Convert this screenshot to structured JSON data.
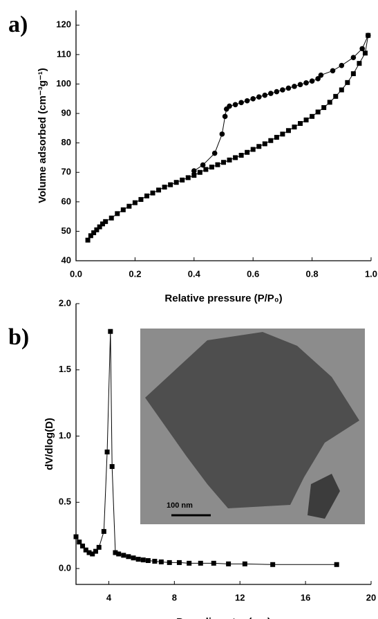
{
  "chart_data": [
    {
      "type": "line",
      "panel_label": "a)",
      "x_label": "Relative pressure (P/P₀)",
      "y_label": "Volume adsorbed (cm⁻³g⁻¹)",
      "xlim": [
        0,
        1
      ],
      "ylim": [
        40,
        125
      ],
      "xticks": [
        {
          "value": 0,
          "label": "0.0"
        },
        0.2,
        0.4,
        0.6,
        0.8,
        {
          "value": 1,
          "label": "1.0"
        }
      ],
      "yticks": [
        40,
        50,
        60,
        70,
        80,
        90,
        100,
        110,
        120
      ],
      "series": [
        {
          "marker": "square",
          "color": "#000000",
          "x": [
            0.04,
            0.05,
            0.06,
            0.07,
            0.08,
            0.09,
            0.1,
            0.12,
            0.14,
            0.16,
            0.18,
            0.2,
            0.22,
            0.24,
            0.26,
            0.28,
            0.3,
            0.32,
            0.34,
            0.36,
            0.38,
            0.4,
            0.42,
            0.44,
            0.46,
            0.48,
            0.5,
            0.52,
            0.54,
            0.56,
            0.58,
            0.6,
            0.62,
            0.64,
            0.66,
            0.68,
            0.7,
            0.72,
            0.74,
            0.76,
            0.78,
            0.8,
            0.82,
            0.84,
            0.86,
            0.88,
            0.9,
            0.92,
            0.94,
            0.96,
            0.98,
            0.99
          ],
          "values": [
            47,
            48.5,
            49.5,
            50.5,
            51.5,
            52.5,
            53.3,
            54.5,
            56,
            57.3,
            58.5,
            59.7,
            60.8,
            62,
            63,
            64,
            65,
            65.8,
            66.6,
            67.4,
            68.2,
            69,
            70,
            71,
            71.8,
            72.6,
            73.4,
            74.2,
            75,
            75.8,
            76.8,
            77.8,
            78.8,
            79.7,
            80.8,
            81.9,
            83,
            84.2,
            85.4,
            86.6,
            87.8,
            89,
            90.5,
            92,
            93.8,
            95.8,
            98,
            100.5,
            103.5,
            107,
            110.5,
            116.5
          ]
        },
        {
          "marker": "circle",
          "color": "#000000",
          "x": [
            0.99,
            0.97,
            0.94,
            0.9,
            0.87,
            0.83,
            0.82,
            0.8,
            0.78,
            0.76,
            0.74,
            0.72,
            0.7,
            0.68,
            0.66,
            0.64,
            0.62,
            0.6,
            0.58,
            0.56,
            0.54,
            0.52,
            0.51,
            0.505,
            0.495,
            0.47,
            0.43,
            0.4
          ],
          "values": [
            116.5,
            112,
            109,
            106.3,
            104.5,
            103,
            101.8,
            101,
            100.4,
            99.8,
            99.2,
            98.6,
            98,
            97.4,
            96.8,
            96.2,
            95.6,
            95,
            94.3,
            93.7,
            93,
            92.5,
            91.5,
            89,
            83,
            76.5,
            72.5,
            70.5
          ]
        }
      ]
    },
    {
      "type": "line",
      "panel_label": "b)",
      "x_label": "Pore diameter (nm)",
      "y_label": "dV/dlog(D)",
      "xlim": [
        2,
        20
      ],
      "ylim": [
        -0.12,
        2
      ],
      "xticks": [
        4,
        8,
        12,
        16,
        20
      ],
      "yticks": [
        {
          "value": 0,
          "label": "0.0"
        },
        0.5,
        {
          "value": 1,
          "label": "1.0"
        },
        1.5,
        {
          "value": 2,
          "label": "2.0"
        }
      ],
      "annotations": [
        "100 nm"
      ],
      "series": [
        {
          "marker": "square",
          "color": "#000000",
          "x": [
            2,
            2.2,
            2.4,
            2.6,
            2.8,
            3.0,
            3.2,
            3.4,
            3.7,
            3.9,
            4.1,
            4.2,
            4.4,
            4.6,
            4.9,
            5.2,
            5.5,
            5.8,
            6.1,
            6.4,
            6.8,
            7.2,
            7.7,
            8.3,
            8.9,
            9.6,
            10.4,
            11.3,
            12.3,
            14,
            17.9
          ],
          "values": [
            0.24,
            0.2,
            0.17,
            0.14,
            0.12,
            0.11,
            0.13,
            0.16,
            0.28,
            0.88,
            1.79,
            0.77,
            0.12,
            0.11,
            0.1,
            0.09,
            0.08,
            0.07,
            0.065,
            0.06,
            0.055,
            0.05,
            0.045,
            0.045,
            0.04,
            0.04,
            0.04,
            0.035,
            0.035,
            0.03,
            0.03
          ]
        }
      ]
    }
  ]
}
